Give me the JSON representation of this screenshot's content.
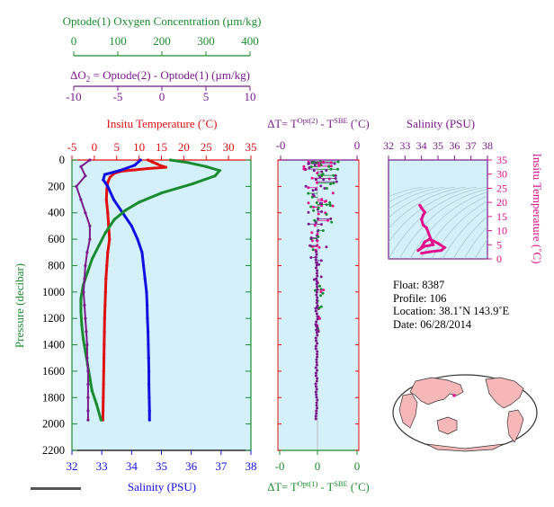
{
  "colors": {
    "green": "#1a8c2e",
    "purple": "#7a1a8c",
    "red": "#e01010",
    "blue": "#1010e0",
    "magenta": "#e0108c",
    "panel_bg": "#d4f1fa",
    "land": "#f5b7b7"
  },
  "header": {
    "oxygen_title": "Optode(1) Oxygen Concentration (µm/kg)",
    "oxygen_ticks": [
      "0",
      "100",
      "200",
      "300",
      "400"
    ],
    "delta_o2_title_a": "ΔO",
    "delta_o2_title_sub": "2",
    "delta_o2_title_b": " = Optode(2) - Optode(1)   (µm/kg)",
    "delta_o2_ticks": [
      "-10",
      "-5",
      "0",
      "5",
      "10"
    ]
  },
  "panels": {
    "temp_title": "Insitu Temperature (˚C)",
    "temp_ticks": [
      "-5",
      "0",
      "5",
      "10",
      "15",
      "20",
      "25",
      "30",
      "35"
    ],
    "pressure_label": "Pressure (decibar)",
    "pressure_ticks": [
      "0",
      "200",
      "400",
      "600",
      "800",
      "1000",
      "1200",
      "1400",
      "1600",
      "1800",
      "2000",
      "2200"
    ],
    "salinity_ticks": [
      "32",
      "33",
      "34",
      "35",
      "36",
      "37",
      "38"
    ],
    "salinity_label": "Salinity (PSU)",
    "dt_top_a": "ΔT= T",
    "dt_top_sup": "Opt(2)",
    "dt_top_b": " - T",
    "dt_top_sup2": "SBE",
    "dt_top_c": " (˚C)",
    "dt_top_ticks": [
      "-0",
      "0"
    ],
    "dt_bottom_a": "ΔT= T",
    "dt_bottom_sup": "Opt(1)",
    "dt_bottom_b": " - T",
    "dt_bottom_sup2": "SBE",
    "dt_bottom_c": " (˚C)",
    "dt_bottom_ticks": [
      "-0",
      "0",
      "0"
    ],
    "ts_title": "Salinity (PSU)",
    "ts_ticks": [
      "32",
      "33",
      "34",
      "35",
      "36",
      "37",
      "38"
    ],
    "ts_temp_ticks": [
      "0",
      "5",
      "10",
      "15",
      "20",
      "25",
      "30",
      "35"
    ],
    "ts_temp_label": "Insitu Temperature (˚C)"
  },
  "info": {
    "float": "Float:  8387",
    "profile": "Profile:  106",
    "location": "Location:  38.1˚N  143.9˚E",
    "date": "Date:  06/28/2014"
  },
  "chart_data": [
    {
      "type": "line",
      "name": "temperature",
      "x_range": [
        -5,
        35
      ],
      "y_range": [
        0,
        2200
      ],
      "points": [
        [
          12,
          0
        ],
        [
          13,
          15
        ],
        [
          14,
          30
        ],
        [
          15,
          45
        ],
        [
          16,
          55
        ],
        [
          12,
          65
        ],
        [
          9,
          75
        ],
        [
          6,
          85
        ],
        [
          4.5,
          100
        ],
        [
          3.5,
          130
        ],
        [
          3,
          170
        ],
        [
          2.8,
          220
        ],
        [
          2.7,
          300
        ],
        [
          3,
          400
        ],
        [
          3.2,
          500
        ],
        [
          3.4,
          600
        ],
        [
          3,
          700
        ],
        [
          2.8,
          800
        ],
        [
          2.6,
          900
        ],
        [
          2.5,
          1000
        ],
        [
          2.4,
          1100
        ],
        [
          2.3,
          1200
        ],
        [
          2.25,
          1300
        ],
        [
          2.2,
          1400
        ],
        [
          2.15,
          1500
        ],
        [
          2.1,
          1600
        ],
        [
          2.05,
          1700
        ],
        [
          2.0,
          1800
        ],
        [
          1.95,
          1900
        ],
        [
          1.9,
          1970
        ]
      ]
    },
    {
      "type": "line",
      "name": "salinity",
      "x_range": [
        32,
        38
      ],
      "y_range": [
        0,
        2200
      ],
      "points": [
        [
          34.3,
          0
        ],
        [
          34.1,
          40
        ],
        [
          33.6,
          80
        ],
        [
          33.1,
          110
        ],
        [
          33.05,
          150
        ],
        [
          33.2,
          200
        ],
        [
          33.4,
          300
        ],
        [
          33.7,
          400
        ],
        [
          34.0,
          500
        ],
        [
          34.2,
          600
        ],
        [
          34.35,
          700
        ],
        [
          34.4,
          800
        ],
        [
          34.45,
          900
        ],
        [
          34.5,
          1000
        ],
        [
          34.52,
          1100
        ],
        [
          34.53,
          1200
        ],
        [
          34.55,
          1300
        ],
        [
          34.56,
          1400
        ],
        [
          34.57,
          1500
        ],
        [
          34.58,
          1600
        ],
        [
          34.58,
          1700
        ],
        [
          34.59,
          1800
        ],
        [
          34.6,
          1900
        ],
        [
          34.6,
          1970
        ]
      ]
    },
    {
      "type": "line",
      "name": "oxygen",
      "x_range": [
        0,
        400
      ],
      "y_range": [
        0,
        2200
      ],
      "points": [
        [
          220,
          0
        ],
        [
          260,
          20
        ],
        [
          300,
          50
        ],
        [
          330,
          80
        ],
        [
          320,
          120
        ],
        [
          270,
          180
        ],
        [
          200,
          250
        ],
        [
          150,
          320
        ],
        [
          120,
          380
        ],
        [
          95,
          450
        ],
        [
          75,
          550
        ],
        [
          60,
          650
        ],
        [
          45,
          750
        ],
        [
          35,
          850
        ],
        [
          25,
          950
        ],
        [
          20,
          1050
        ],
        [
          20,
          1150
        ],
        [
          22,
          1250
        ],
        [
          25,
          1350
        ],
        [
          30,
          1450
        ],
        [
          35,
          1550
        ],
        [
          40,
          1650
        ],
        [
          45,
          1750
        ],
        [
          55,
          1850
        ],
        [
          65,
          1970
        ]
      ]
    },
    {
      "type": "line",
      "name": "delta_o2",
      "x_range": [
        -10,
        10
      ],
      "y_range": [
        0,
        2200
      ],
      "points": [
        [
          -8,
          0
        ],
        [
          -9,
          50
        ],
        [
          -8.5,
          120
        ],
        [
          -9.5,
          200
        ],
        [
          -9,
          300
        ],
        [
          -8.5,
          400
        ],
        [
          -8,
          500
        ],
        [
          -8,
          600
        ],
        [
          -8.3,
          700
        ],
        [
          -8.5,
          800
        ],
        [
          -8.6,
          900
        ],
        [
          -8.7,
          1000
        ],
        [
          -8.6,
          1100
        ],
        [
          -8.5,
          1200
        ],
        [
          -8.4,
          1300
        ],
        [
          -8.3,
          1400
        ],
        [
          -8.3,
          1500
        ],
        [
          -8.2,
          1600
        ],
        [
          -8.2,
          1700
        ],
        [
          -8.2,
          1800
        ],
        [
          -8.2,
          1900
        ],
        [
          -8.2,
          1970
        ]
      ]
    },
    {
      "type": "line",
      "name": "ts_diagram",
      "x_range": [
        32,
        38
      ],
      "y_range": [
        0,
        35
      ],
      "points": [
        [
          34.0,
          2
        ],
        [
          34.5,
          2.5
        ],
        [
          35.2,
          3
        ],
        [
          35.4,
          4
        ],
        [
          35.0,
          5.5
        ],
        [
          34.5,
          7
        ],
        [
          34.2,
          6
        ],
        [
          34.0,
          4
        ],
        [
          33.8,
          3
        ],
        [
          34.2,
          4.5
        ],
        [
          34.7,
          5
        ],
        [
          34.3,
          11
        ],
        [
          34.1,
          12
        ],
        [
          34.0,
          14
        ],
        [
          34.1,
          15.5
        ],
        [
          34.2,
          16.5
        ],
        [
          34.0,
          18
        ],
        [
          33.9,
          19
        ]
      ]
    },
    {
      "type": "scatter",
      "name": "delta_t",
      "y_range": [
        0,
        2200
      ]
    }
  ]
}
